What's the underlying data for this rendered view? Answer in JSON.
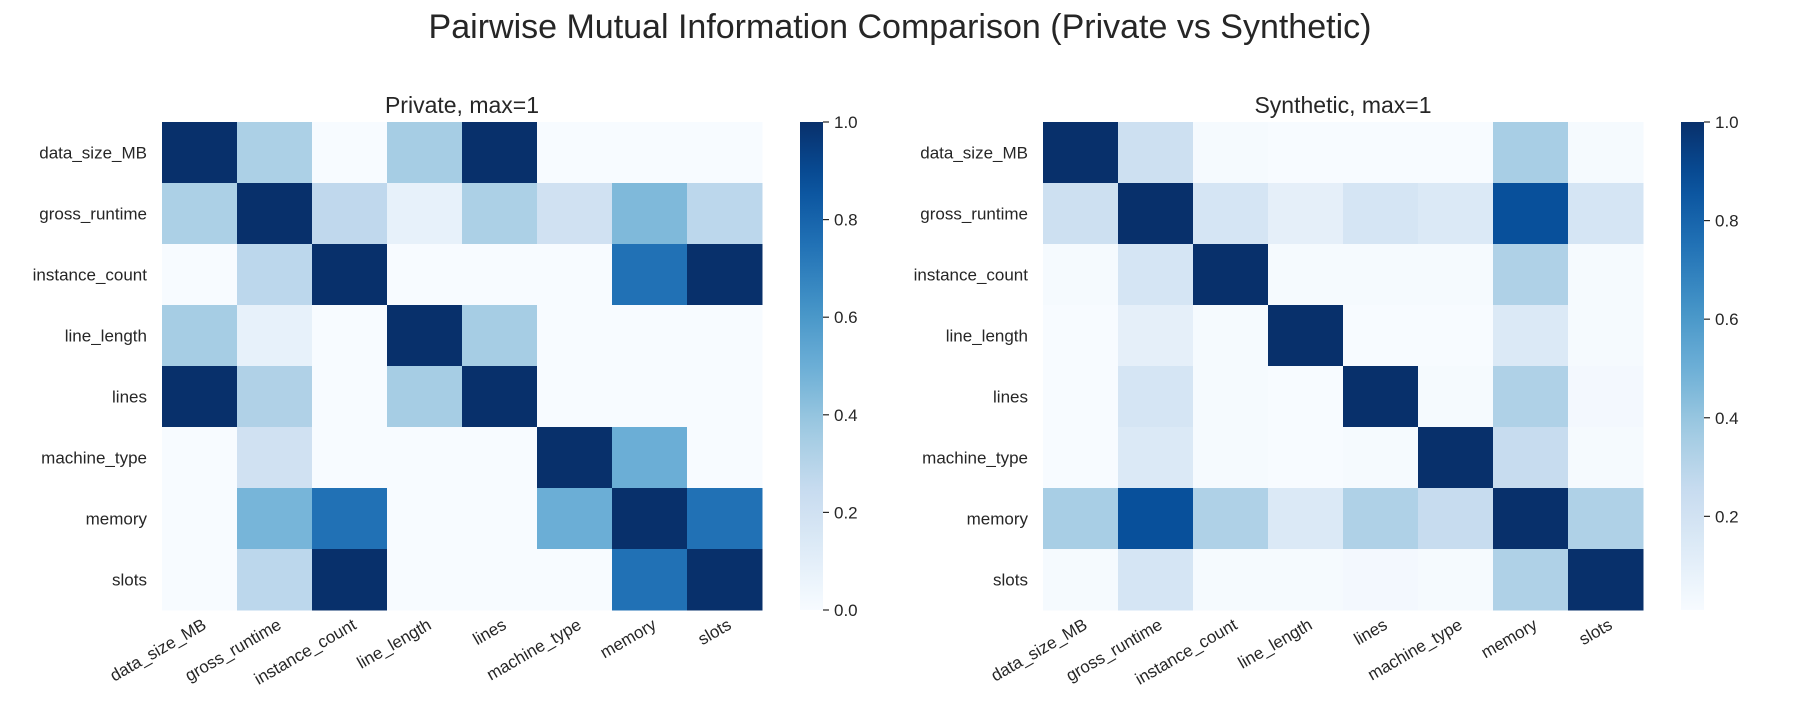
{
  "figure_title": "Pairwise Mutual Information Comparison (Private vs Synthetic)",
  "chart_data": [
    {
      "type": "heatmap",
      "title": "Private, max=1",
      "colormap": "Blues",
      "x_categories": [
        "data_size_MB",
        "gross_runtime",
        "instance_count",
        "line_length",
        "lines",
        "machine_type",
        "memory",
        "slots"
      ],
      "y_categories": [
        "data_size_MB",
        "gross_runtime",
        "instance_count",
        "line_length",
        "lines",
        "machine_type",
        "memory",
        "slots"
      ],
      "values": [
        [
          1.0,
          0.33,
          0.0,
          0.35,
          1.0,
          0.0,
          0.0,
          0.0
        ],
        [
          0.33,
          1.0,
          0.27,
          0.08,
          0.33,
          0.2,
          0.45,
          0.28
        ],
        [
          0.0,
          0.28,
          1.0,
          0.0,
          0.0,
          0.0,
          0.75,
          1.0
        ],
        [
          0.35,
          0.08,
          0.0,
          1.0,
          0.35,
          0.0,
          0.0,
          0.0
        ],
        [
          1.0,
          0.32,
          0.0,
          0.35,
          1.0,
          0.0,
          0.0,
          0.0
        ],
        [
          0.0,
          0.2,
          0.0,
          0.0,
          0.0,
          1.0,
          0.5,
          0.0
        ],
        [
          0.0,
          0.47,
          0.75,
          0.0,
          0.0,
          0.5,
          1.0,
          0.75
        ],
        [
          0.0,
          0.28,
          1.0,
          0.0,
          0.0,
          0.0,
          0.75,
          1.0
        ]
      ],
      "colorbar": {
        "min": 0.0,
        "max": 1.0,
        "ticks": [
          "0.0",
          "0.2",
          "0.4",
          "0.6",
          "0.8",
          "1.0"
        ],
        "tick_values": [
          0.0,
          0.2,
          0.4,
          0.6,
          0.8,
          1.0
        ]
      }
    },
    {
      "type": "heatmap",
      "title": "Synthetic, max=1",
      "colormap": "Blues",
      "x_categories": [
        "data_size_MB",
        "gross_runtime",
        "instance_count",
        "line_length",
        "lines",
        "machine_type",
        "memory",
        "slots"
      ],
      "y_categories": [
        "data_size_MB",
        "gross_runtime",
        "instance_count",
        "line_length",
        "lines",
        "machine_type",
        "memory",
        "slots"
      ],
      "values": [
        [
          1.0,
          0.22,
          0.02,
          0.01,
          0.01,
          0.01,
          0.35,
          0.02
        ],
        [
          0.22,
          1.0,
          0.18,
          0.1,
          0.18,
          0.15,
          0.88,
          0.18
        ],
        [
          0.02,
          0.18,
          1.0,
          0.02,
          0.02,
          0.02,
          0.33,
          0.02
        ],
        [
          0.01,
          0.1,
          0.02,
          1.0,
          0.01,
          0.01,
          0.15,
          0.02
        ],
        [
          0.01,
          0.18,
          0.02,
          0.01,
          1.0,
          0.02,
          0.33,
          0.03
        ],
        [
          0.01,
          0.15,
          0.02,
          0.01,
          0.02,
          1.0,
          0.25,
          0.02
        ],
        [
          0.35,
          0.88,
          0.33,
          0.15,
          0.33,
          0.25,
          1.0,
          0.33
        ],
        [
          0.02,
          0.18,
          0.02,
          0.02,
          0.03,
          0.02,
          0.33,
          1.0
        ]
      ],
      "colorbar": {
        "min": 0.01,
        "max": 1.0,
        "ticks": [
          "0.2",
          "0.4",
          "0.6",
          "0.8",
          "1.0"
        ],
        "tick_values": [
          0.2,
          0.4,
          0.6,
          0.8,
          1.0
        ]
      }
    }
  ]
}
